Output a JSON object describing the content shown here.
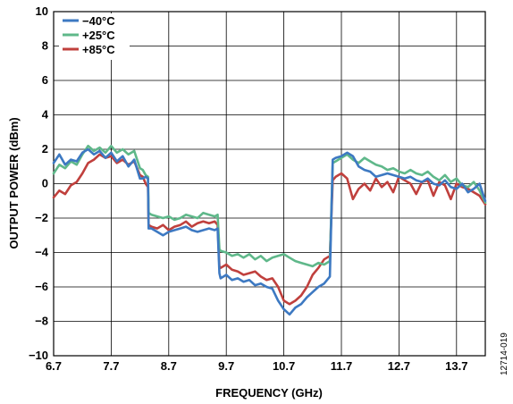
{
  "chart_data": {
    "type": "line",
    "xlabel": "FREQUENCY (GHz)",
    "ylabel": "OUTPUT POWER (dBm)",
    "xlim": [
      6.7,
      14.2
    ],
    "ylim": [
      -10,
      10
    ],
    "xticks": [
      "6.7",
      "7.7",
      "8.7",
      "9.7",
      "10.7",
      "11.7",
      "12.7",
      "13.7"
    ],
    "yticks": [
      "10",
      "8",
      "6",
      "4",
      "2",
      "0",
      "−2",
      "−4",
      "−6",
      "−8",
      "−10"
    ],
    "grid": true,
    "legend_position": "top-left",
    "figure_id": "12714-019",
    "series": [
      {
        "name": "−40°C",
        "color": "#3d79c2",
        "x": [
          6.7,
          6.8,
          6.9,
          7.0,
          7.1,
          7.2,
          7.3,
          7.4,
          7.5,
          7.6,
          7.7,
          7.8,
          7.9,
          8.0,
          8.1,
          8.2,
          8.25,
          8.3,
          8.34,
          8.35,
          8.4,
          8.5,
          8.6,
          8.7,
          8.8,
          8.9,
          9.0,
          9.1,
          9.2,
          9.3,
          9.4,
          9.5,
          9.55,
          9.58,
          9.6,
          9.7,
          9.8,
          9.9,
          10.0,
          10.1,
          10.2,
          10.3,
          10.4,
          10.5,
          10.6,
          10.7,
          10.8,
          10.9,
          11.0,
          11.1,
          11.2,
          11.3,
          11.4,
          11.5,
          11.55,
          11.6,
          11.7,
          11.8,
          11.9,
          12.0,
          12.1,
          12.2,
          12.3,
          12.4,
          12.5,
          12.6,
          12.7,
          12.8,
          12.9,
          13.0,
          13.1,
          13.2,
          13.3,
          13.4,
          13.5,
          13.6,
          13.7,
          13.8,
          13.9,
          14.0,
          14.1,
          14.2
        ],
        "y": [
          1.2,
          1.7,
          1.1,
          1.4,
          1.3,
          1.8,
          2.0,
          1.7,
          1.9,
          1.5,
          1.8,
          1.3,
          1.6,
          1.0,
          1.4,
          0.3,
          0.3,
          0.4,
          0.3,
          -2.6,
          -2.6,
          -2.8,
          -3.0,
          -2.8,
          -2.7,
          -2.6,
          -2.5,
          -2.7,
          -2.8,
          -2.7,
          -2.6,
          -2.7,
          -2.6,
          -5.2,
          -5.5,
          -5.3,
          -5.6,
          -5.5,
          -5.7,
          -5.6,
          -5.9,
          -5.8,
          -6.0,
          -6.1,
          -6.8,
          -7.3,
          -7.6,
          -7.2,
          -7.0,
          -6.6,
          -6.3,
          -6.0,
          -5.8,
          -5.4,
          1.4,
          1.5,
          1.6,
          1.8,
          1.6,
          1.0,
          0.8,
          0.7,
          0.4,
          0.5,
          0.6,
          0.5,
          0.4,
          0.3,
          0.4,
          0.2,
          0.1,
          0.3,
          0.0,
          -0.1,
          0.2,
          -0.2,
          -0.3,
          0.0,
          -0.5,
          -0.3,
          0.0,
          -1.0
        ]
      },
      {
        "name": "+25°C",
        "color": "#5fb88a",
        "x": [
          6.7,
          6.8,
          6.9,
          7.0,
          7.1,
          7.2,
          7.3,
          7.4,
          7.5,
          7.6,
          7.7,
          7.8,
          7.9,
          8.0,
          8.1,
          8.2,
          8.25,
          8.3,
          8.34,
          8.35,
          8.4,
          8.5,
          8.6,
          8.7,
          8.8,
          8.9,
          9.0,
          9.1,
          9.2,
          9.3,
          9.4,
          9.5,
          9.55,
          9.58,
          9.6,
          9.7,
          9.8,
          9.9,
          10.0,
          10.1,
          10.2,
          10.3,
          10.4,
          10.5,
          10.6,
          10.7,
          10.8,
          10.9,
          11.0,
          11.1,
          11.2,
          11.3,
          11.4,
          11.5,
          11.55,
          11.6,
          11.7,
          11.8,
          11.9,
          12.0,
          12.1,
          12.2,
          12.3,
          12.4,
          12.5,
          12.6,
          12.7,
          12.8,
          12.9,
          13.0,
          13.1,
          13.2,
          13.3,
          13.4,
          13.5,
          13.6,
          13.7,
          13.8,
          13.9,
          14.0,
          14.1,
          14.2
        ],
        "y": [
          0.6,
          1.1,
          0.9,
          1.3,
          1.1,
          1.7,
          2.2,
          1.9,
          2.1,
          1.8,
          2.2,
          1.8,
          2.0,
          1.7,
          1.9,
          0.9,
          0.8,
          0.5,
          0.4,
          -1.7,
          -1.8,
          -1.9,
          -2.0,
          -1.9,
          -2.1,
          -2.0,
          -1.8,
          -1.9,
          -2.0,
          -1.7,
          -1.8,
          -1.9,
          -1.8,
          -3.8,
          -3.9,
          -4.0,
          -4.2,
          -4.1,
          -4.3,
          -4.1,
          -4.4,
          -4.2,
          -4.5,
          -4.3,
          -4.2,
          -4.1,
          -4.3,
          -4.5,
          -4.6,
          -4.7,
          -4.8,
          -4.6,
          -4.7,
          -4.5,
          1.2,
          1.3,
          1.5,
          1.7,
          1.4,
          1.2,
          1.5,
          1.3,
          1.1,
          1.0,
          0.8,
          0.9,
          0.7,
          0.6,
          0.8,
          0.6,
          0.5,
          0.7,
          0.4,
          0.2,
          0.5,
          0.1,
          0.3,
          -0.1,
          -0.2,
          0.1,
          -0.4,
          -1.1
        ]
      },
      {
        "name": "+85°C",
        "color": "#c0403d",
        "x": [
          6.7,
          6.8,
          6.9,
          7.0,
          7.1,
          7.2,
          7.3,
          7.4,
          7.5,
          7.6,
          7.7,
          7.8,
          7.9,
          8.0,
          8.1,
          8.2,
          8.25,
          8.3,
          8.34,
          8.35,
          8.4,
          8.5,
          8.6,
          8.7,
          8.8,
          8.9,
          9.0,
          9.1,
          9.2,
          9.3,
          9.4,
          9.5,
          9.55,
          9.58,
          9.6,
          9.7,
          9.8,
          9.9,
          10.0,
          10.1,
          10.2,
          10.3,
          10.4,
          10.5,
          10.6,
          10.7,
          10.8,
          10.9,
          11.0,
          11.1,
          11.2,
          11.3,
          11.4,
          11.5,
          11.55,
          11.6,
          11.7,
          11.8,
          11.9,
          12.0,
          12.1,
          12.2,
          12.3,
          12.4,
          12.5,
          12.6,
          12.7,
          12.8,
          12.9,
          13.0,
          13.1,
          13.2,
          13.3,
          13.4,
          13.5,
          13.6,
          13.7,
          13.8,
          13.9,
          14.0,
          14.1,
          14.2
        ],
        "y": [
          -0.8,
          -0.4,
          -0.6,
          -0.1,
          0.1,
          0.6,
          1.2,
          1.4,
          1.7,
          1.5,
          1.6,
          1.2,
          1.4,
          1.1,
          1.3,
          0.5,
          0.4,
          0.0,
          -0.2,
          -2.4,
          -2.5,
          -2.6,
          -2.4,
          -2.7,
          -2.5,
          -2.4,
          -2.2,
          -2.5,
          -2.3,
          -2.2,
          -2.3,
          -2.2,
          -2.4,
          -4.8,
          -4.9,
          -4.7,
          -5.0,
          -5.1,
          -5.3,
          -5.2,
          -5.1,
          -5.4,
          -5.6,
          -5.5,
          -6.0,
          -6.8,
          -7.0,
          -6.8,
          -6.5,
          -6.0,
          -5.3,
          -4.9,
          -4.4,
          -4.2,
          0.2,
          0.4,
          0.6,
          0.3,
          -0.9,
          -0.3,
          0.0,
          -0.4,
          0.3,
          -0.2,
          0.1,
          -0.5,
          0.4,
          0.2,
          0.0,
          -0.6,
          0.1,
          0.2,
          -0.7,
          0.1,
          -0.1,
          -0.9,
          0.0,
          -0.2,
          -0.3,
          -0.5,
          -0.7,
          -1.2
        ]
      }
    ]
  }
}
